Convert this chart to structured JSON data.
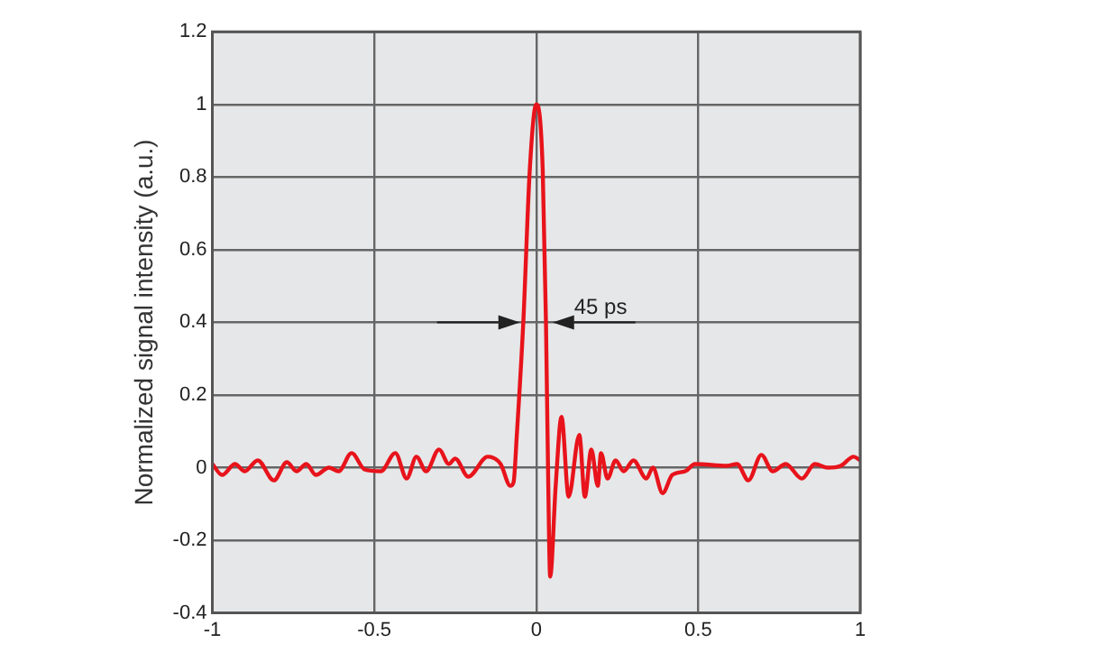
{
  "chart_data": {
    "type": "line",
    "ylabel": "Normalized signal intensity (a.u.)",
    "xlim": [
      -1,
      1
    ],
    "xticks": [
      -1,
      -0.5,
      0,
      0.5,
      1
    ],
    "ylim": [
      -0.4,
      1.2
    ],
    "yticks": [
      -0.4,
      -0.2,
      0,
      0.2,
      0.4,
      0.6,
      0.8,
      1,
      1.2
    ],
    "grid": true,
    "legend": false,
    "marker": "none",
    "line_style": "solid",
    "annotations": [
      {
        "text": "45 ps",
        "x": 0,
        "y": 0.4
      }
    ],
    "series": [
      {
        "color": "#e8131b",
        "x": [
          -1,
          -0.97,
          -0.93,
          -0.9,
          -0.86,
          -0.81,
          -0.77,
          -0.74,
          -0.71,
          -0.68,
          -0.64,
          -0.61,
          -0.57,
          -0.53,
          -0.48,
          -0.435,
          -0.4,
          -0.37,
          -0.34,
          -0.3,
          -0.27,
          -0.25,
          -0.21,
          -0.15,
          -0.11,
          -0.08,
          -0.07,
          -0.06,
          -0.04,
          -0.02,
          0,
          0.02,
          0.03,
          0.036,
          0.043,
          0.06,
          0.078,
          0.1,
          0.133,
          0.15,
          0.17,
          0.19,
          0.2,
          0.22,
          0.245,
          0.27,
          0.3,
          0.34,
          0.36,
          0.39,
          0.42,
          0.46,
          0.49,
          0.59,
          0.62,
          0.655,
          0.695,
          0.73,
          0.77,
          0.82,
          0.86,
          0.9,
          0.94,
          0.98,
          1
        ],
        "values": [
          0.01,
          -0.02,
          0.01,
          -0.01,
          0.02,
          -0.035,
          0.015,
          -0.01,
          0.01,
          -0.02,
          0,
          -0.01,
          0.04,
          -0.005,
          -0.01,
          0.04,
          -0.03,
          0.03,
          -0.01,
          0.05,
          0.01,
          0.025,
          -0.025,
          0.03,
          0.01,
          -0.05,
          -0.04,
          0.09,
          0.4,
          0.82,
          1,
          0.82,
          0.4,
          0.02,
          -0.3,
          -0.05,
          0.14,
          -0.08,
          0.09,
          -0.08,
          0.05,
          -0.05,
          0.04,
          -0.03,
          0.02,
          -0.01,
          0.02,
          -0.03,
          0,
          -0.07,
          -0.02,
          -0.01,
          0.01,
          0.005,
          0.01,
          -0.035,
          0.035,
          -0.01,
          0.01,
          -0.03,
          0.01,
          0,
          0.005,
          0.03,
          0.02
        ]
      }
    ]
  }
}
